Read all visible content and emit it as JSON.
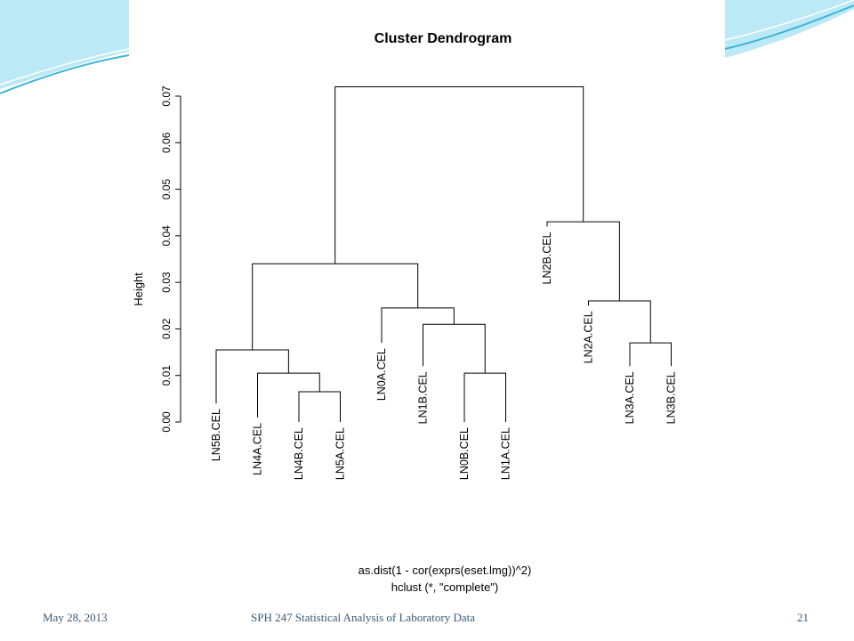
{
  "slide": {
    "footer_date": "May 28, 2013",
    "footer_course": "SPH 247 Statistical Analysis of Laboratory Data",
    "footer_page": "21"
  },
  "colors": {
    "wave_primary": "#3fb6d9",
    "wave_light": "#9fe0f2",
    "ink": "#000000",
    "footer_text": "#3a5a7a"
  },
  "chart_data": {
    "type": "dendrogram",
    "title": "Cluster Dendrogram",
    "ylabel": "Height",
    "xlabel_line1": "as.dist(1 - cor(exprs(eset.lmg))^2)",
    "xlabel_line2": "hclust (*, \"complete\")",
    "ylim": [
      0,
      0.07
    ],
    "yticks": [
      "0.00",
      "0.01",
      "0.02",
      "0.03",
      "0.04",
      "0.05",
      "0.06",
      "0.07"
    ],
    "leaves": [
      {
        "label": "LN5B.CEL",
        "height": 0.004
      },
      {
        "label": "LN4A.CEL",
        "height": 0.001
      },
      {
        "label": "LN4B.CEL",
        "height": 0.0
      },
      {
        "label": "LN5A.CEL",
        "height": 0.0
      },
      {
        "label": "LN0A.CEL",
        "height": 0.017
      },
      {
        "label": "LN1B.CEL",
        "height": 0.012
      },
      {
        "label": "LN0B.CEL",
        "height": 0.0
      },
      {
        "label": "LN1A.CEL",
        "height": 0.0
      },
      {
        "label": "LN2B.CEL",
        "height": 0.042
      },
      {
        "label": "LN2A.CEL",
        "height": 0.025
      },
      {
        "label": "LN3A.CEL",
        "height": 0.012
      },
      {
        "label": "LN3B.CEL",
        "height": 0.012
      }
    ],
    "merges": [
      {
        "left": 3,
        "right": 4,
        "height": 0.0065
      },
      {
        "left": 7,
        "right": 8,
        "height": 0.0105
      },
      {
        "left": 11,
        "right": 12,
        "height": 0.017
      },
      {
        "left": 2,
        "right": "m1",
        "height": 0.0105
      },
      {
        "left": 1,
        "right": "m4",
        "height": 0.0155
      },
      {
        "left": 6,
        "right": "m2",
        "height": 0.021
      },
      {
        "left": 10,
        "right": "m3",
        "height": 0.026
      },
      {
        "left": 5,
        "right": "m6",
        "height": 0.0245
      },
      {
        "left": "m5",
        "right": "m8",
        "height": 0.034
      },
      {
        "left": 9,
        "right": "m7",
        "height": 0.043
      },
      {
        "left": "m9",
        "right": "m10",
        "height": 0.072
      }
    ]
  }
}
